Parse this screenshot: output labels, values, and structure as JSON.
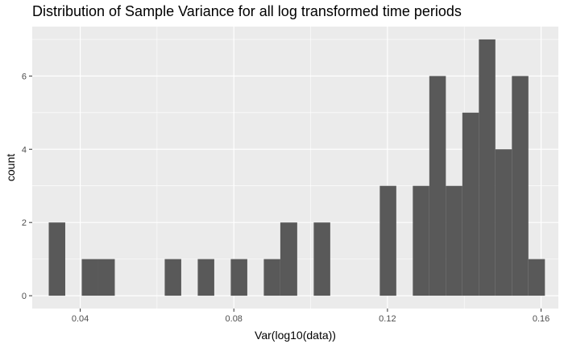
{
  "chart_data": {
    "type": "histogram",
    "title": "Distribution of Sample Variance for all log transformed time periods",
    "xlabel": "Var(log10(data))",
    "ylabel": "count",
    "xlim": [
      0.0275,
      0.1645
    ],
    "ylim": [
      -0.35,
      7.35
    ],
    "x_ticks": [
      0.04,
      0.08,
      0.12,
      0.16
    ],
    "x_tick_labels": [
      "0.04",
      "0.08",
      "0.12",
      "0.16"
    ],
    "y_ticks": [
      0,
      2,
      4,
      6
    ],
    "y_tick_labels": [
      "0",
      "2",
      "4",
      "6"
    ],
    "grid": true,
    "bar_color": "#595959",
    "panel_color": "#ebebeb",
    "bins": [
      {
        "x0": 0.0318,
        "x1": 0.0361,
        "count": 2
      },
      {
        "x0": 0.0404,
        "x1": 0.0447,
        "count": 1
      },
      {
        "x0": 0.0447,
        "x1": 0.049,
        "count": 1
      },
      {
        "x0": 0.062,
        "x1": 0.0663,
        "count": 1
      },
      {
        "x0": 0.0706,
        "x1": 0.0749,
        "count": 1
      },
      {
        "x0": 0.0792,
        "x1": 0.0835,
        "count": 1
      },
      {
        "x0": 0.0878,
        "x1": 0.0921,
        "count": 1
      },
      {
        "x0": 0.0921,
        "x1": 0.0965,
        "count": 2
      },
      {
        "x0": 0.1008,
        "x1": 0.1051,
        "count": 2
      },
      {
        "x0": 0.118,
        "x1": 0.1223,
        "count": 3
      },
      {
        "x0": 0.1266,
        "x1": 0.1309,
        "count": 3
      },
      {
        "x0": 0.1309,
        "x1": 0.1352,
        "count": 6
      },
      {
        "x0": 0.1352,
        "x1": 0.1395,
        "count": 3
      },
      {
        "x0": 0.1395,
        "x1": 0.1438,
        "count": 5
      },
      {
        "x0": 0.1438,
        "x1": 0.1481,
        "count": 7
      },
      {
        "x0": 0.1481,
        "x1": 0.1524,
        "count": 4
      },
      {
        "x0": 0.1524,
        "x1": 0.1567,
        "count": 6
      },
      {
        "x0": 0.1567,
        "x1": 0.161,
        "count": 1
      }
    ]
  }
}
